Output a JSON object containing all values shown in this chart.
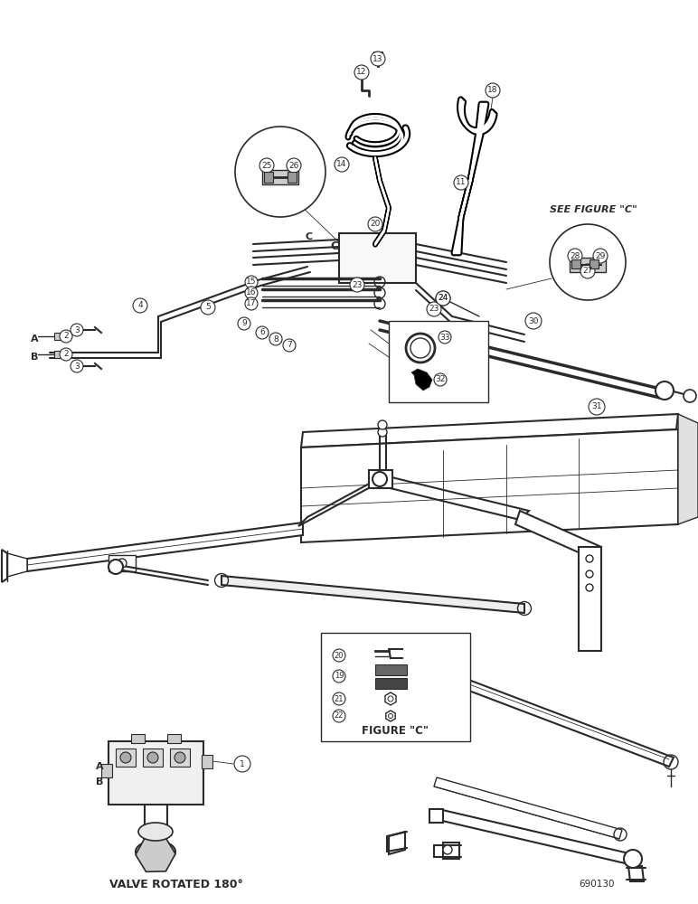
{
  "bg_color": "#ffffff",
  "line_color": "#2a2a2a",
  "title_bottom": "VALVE ROTATED 180°",
  "fig_c_title": "FIGURE \"C\"",
  "see_fig_c": "SEE FIGURE \"C\"",
  "catalog_number": "690130",
  "label_A": "A",
  "label_B": "B",
  "label_C": "C"
}
